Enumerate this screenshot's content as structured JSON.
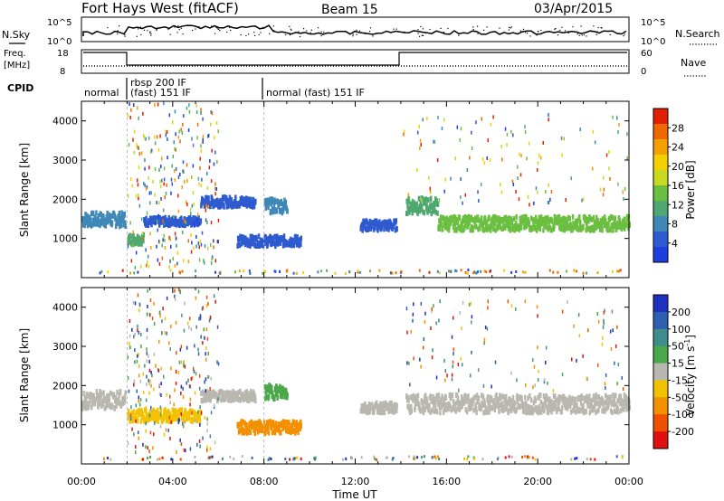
{
  "header": {
    "station": "Fort Hays West (fitACF)",
    "beam": "Beam 15",
    "date": "03/Apr/2015"
  },
  "top_panels": {
    "nsky_label": "N.Sky",
    "nsearch_label": "N.Search",
    "nsky_ticks": [
      "10^5",
      "10^0"
    ],
    "nsearch_ticks": [
      "10^5",
      "10^0"
    ],
    "freq_label_1": "Freq.",
    "freq_label_2": "[MHz]",
    "freq_ticks": [
      "18",
      "8"
    ],
    "nave_label": "Nave",
    "nave_ticks": [
      "60",
      "0"
    ],
    "cpid_label": "CPID",
    "cpid_segments": [
      {
        "label": "normal",
        "start": 0
      },
      {
        "label": "rbsp 200 IF",
        "start": 2,
        "second_line": "(fast) 151 IF"
      },
      {
        "label": "normal (fast) 151 IF",
        "start": 8
      }
    ]
  },
  "chart_data": [
    {
      "type": "heatmap",
      "name": "Power",
      "ylabel": "Slant Range [km]",
      "xlabel": "Time UT",
      "x_ticks": [
        "00:00",
        "04:00",
        "08:00",
        "12:00",
        "16:00",
        "20:00",
        "00:00"
      ],
      "x_tick_hours": [
        0,
        4,
        8,
        12,
        16,
        20,
        24
      ],
      "y_ticks": [
        "1000",
        "2000",
        "3000",
        "4000"
      ],
      "y_tick_values": [
        1000,
        2000,
        3000,
        4000
      ],
      "ylim": [
        0,
        4500
      ],
      "xlim": [
        0,
        24
      ],
      "colorbar_label": "Power [dB]",
      "colorbar_ticks": [
        "4",
        "8",
        "12",
        "16",
        "20",
        "24",
        "28"
      ],
      "colorbar_colors": [
        "#1f3ee0",
        "#2f5bd0",
        "#3f88b8",
        "#4ea870",
        "#6bbf40",
        "#c9d820",
        "#f5d000",
        "#f3a000",
        "#ee6a00",
        "#e02000"
      ]
    },
    {
      "type": "heatmap",
      "name": "Velocity",
      "ylabel": "Slant Range [km]",
      "xlabel": "Time UT",
      "x_ticks": [
        "00:00",
        "04:00",
        "08:00",
        "12:00",
        "16:00",
        "20:00",
        "00:00"
      ],
      "x_tick_hours": [
        0,
        4,
        8,
        12,
        16,
        20,
        24
      ],
      "y_ticks": [
        "1000",
        "2000",
        "3000",
        "4000"
      ],
      "y_tick_values": [
        1000,
        2000,
        3000,
        4000
      ],
      "ylim": [
        0,
        4500
      ],
      "xlim": [
        0,
        24
      ],
      "colorbar_label": "Velocity [m s",
      "colorbar_label_sup": "-1",
      "colorbar_label_end": "]",
      "colorbar_ticks": [
        "200",
        "100",
        "50",
        "15",
        "-15",
        "-50",
        "-100",
        "-200"
      ],
      "colorbar_colors": [
        "#1f2fc0",
        "#2f5fb0",
        "#3e8c8c",
        "#4aa84a",
        "#b8b8b0",
        "#f2c200",
        "#f39000",
        "#ee5000",
        "#e01010"
      ]
    }
  ],
  "bands": {
    "power": [
      {
        "t0": 0,
        "t1": 1.9,
        "r": 1550,
        "w": 350,
        "c": "#3f88b8"
      },
      {
        "t0": 2.0,
        "t1": 2.7,
        "r": 1050,
        "w": 250,
        "c": "#4ea870"
      },
      {
        "t0": 2.7,
        "t1": 5.2,
        "r": 1500,
        "w": 200,
        "c": "#2f5bd0"
      },
      {
        "t0": 5.2,
        "t1": 7.6,
        "r": 2000,
        "w": 250,
        "c": "#2f5bd0"
      },
      {
        "t0": 6.8,
        "t1": 9.6,
        "r": 1000,
        "w": 250,
        "c": "#2f5bd0"
      },
      {
        "t0": 8.0,
        "t1": 9.0,
        "r": 1900,
        "w": 350,
        "c": "#3f88b8"
      },
      {
        "t0": 12.2,
        "t1": 13.8,
        "r": 1400,
        "w": 250,
        "c": "#2f5bd0"
      },
      {
        "t0": 14.2,
        "t1": 15.6,
        "r": 1900,
        "w": 400,
        "c": "#4ea870"
      },
      {
        "t0": 15.6,
        "t1": 24,
        "r": 1450,
        "w": 350,
        "c": "#6bbf40"
      }
    ],
    "velocity": [
      {
        "t0": 0,
        "t1": 1.9,
        "r": 1700,
        "w": 450,
        "c": "#b8b8b0"
      },
      {
        "t0": 2.0,
        "t1": 5.2,
        "r": 1300,
        "w": 300,
        "c": "#f2c200"
      },
      {
        "t0": 5.2,
        "t1": 7.6,
        "r": 1800,
        "w": 250,
        "c": "#b8b8b0"
      },
      {
        "t0": 6.8,
        "t1": 9.6,
        "r": 1000,
        "w": 300,
        "c": "#f39000"
      },
      {
        "t0": 8.0,
        "t1": 9.0,
        "r": 1900,
        "w": 350,
        "c": "#4aa84a"
      },
      {
        "t0": 12.2,
        "t1": 13.8,
        "r": 1500,
        "w": 250,
        "c": "#b8b8b0"
      },
      {
        "t0": 14.2,
        "t1": 24,
        "r": 1600,
        "w": 450,
        "c": "#b8b8b0"
      }
    ]
  }
}
